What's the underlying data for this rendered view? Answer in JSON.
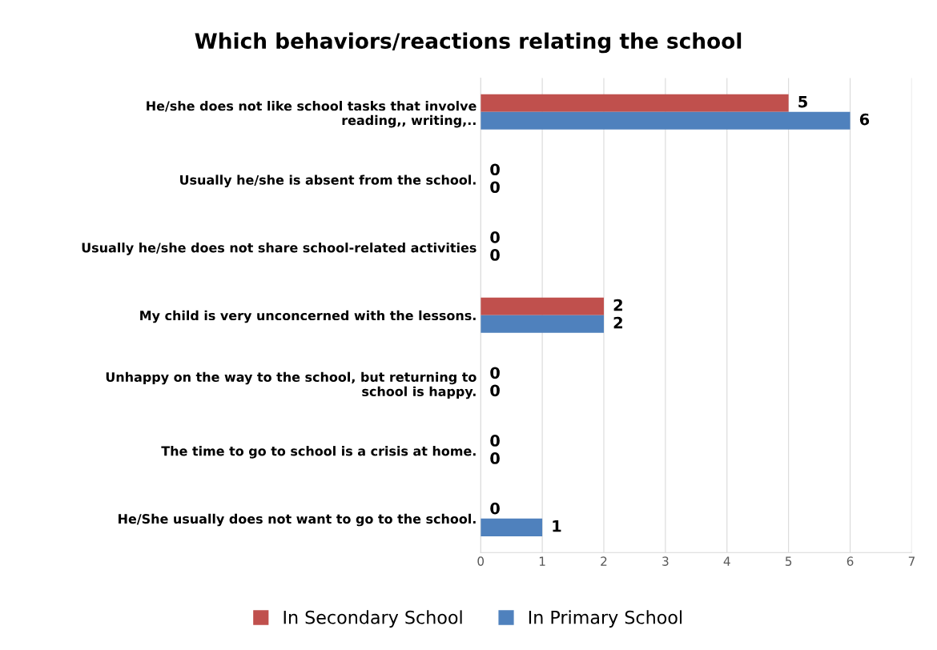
{
  "chart_data": {
    "type": "bar",
    "orientation": "horizontal",
    "title": "Which behaviors/reactions relating the school",
    "categories": [
      "He/she does not like school tasks that involve reading,, writing,..",
      "Usually he/she is absent from the school.",
      "Usually he/she does not share school-related activities",
      "My child is very unconcerned with the lessons.",
      "Unhappy on the way to the school, but returning to school is happy.",
      "The time to go to school is a crisis at home.",
      "He/She usually does not want to go to the school."
    ],
    "series": [
      {
        "name": "In Secondary School",
        "color": "#c0504d",
        "values": [
          5,
          0,
          0,
          2,
          0,
          0,
          0
        ]
      },
      {
        "name": "In Primary School",
        "color": "#4f81bd",
        "values": [
          6,
          0,
          0,
          2,
          0,
          0,
          1
        ]
      }
    ],
    "xlim": [
      0,
      7
    ],
    "xticks": [
      0,
      1,
      2,
      3,
      4,
      5,
      6,
      7
    ],
    "grid": "x",
    "legend": "bottom",
    "data_labels": true
  }
}
